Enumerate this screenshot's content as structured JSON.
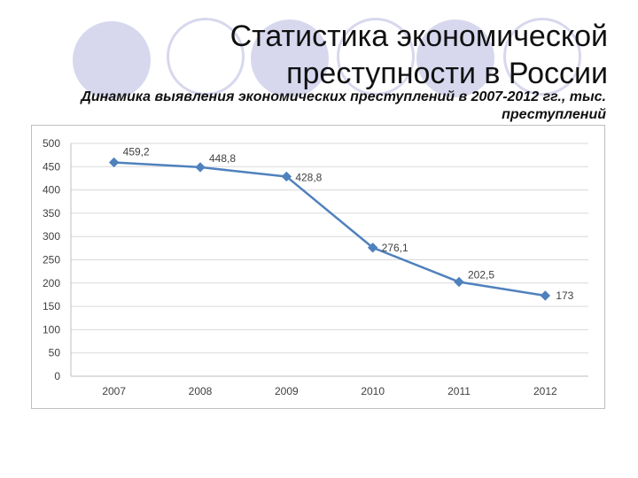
{
  "slide": {
    "title": "Статистика экономической преступности в России"
  },
  "chart_data": {
    "type": "line",
    "title": "Динамика выявления экономических преступлений в 2007-2012 гг., тыс. преступлений",
    "categories": [
      "2007",
      "2008",
      "2009",
      "2010",
      "2011",
      "2012"
    ],
    "series": [
      {
        "values": [
          459.2,
          448.8,
          428.8,
          276.1,
          202.5,
          173
        ],
        "labels": [
          "459,2",
          "448,8",
          "428,8",
          "276,1",
          "202,5",
          "173"
        ]
      }
    ],
    "xlabel": "",
    "ylabel": "",
    "ylim": [
      0,
      500
    ],
    "yticks": [
      0,
      50,
      100,
      150,
      200,
      250,
      300,
      350,
      400,
      450,
      500
    ],
    "grid": true,
    "legend": false,
    "colors": {
      "line": "#4f81bd",
      "marker": "#4f81bd",
      "grid": "#d9d9d9",
      "axis": "#bfbfbf",
      "text": "#404040",
      "decor": "#d7d8ee"
    }
  }
}
